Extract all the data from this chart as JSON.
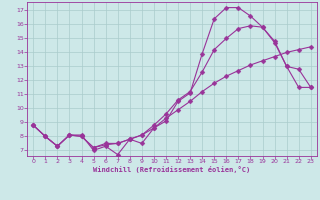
{
  "xlabel": "Windchill (Refroidissement éolien,°C)",
  "bg_color": "#cde8e8",
  "grid_color": "#aacccc",
  "line_color": "#993399",
  "markersize": 2.5,
  "linewidth": 0.8,
  "xlim": [
    -0.5,
    23.5
  ],
  "ylim": [
    6.6,
    17.6
  ],
  "xticks": [
    0,
    1,
    2,
    3,
    4,
    5,
    6,
    7,
    8,
    9,
    10,
    11,
    12,
    13,
    14,
    15,
    16,
    17,
    18,
    19,
    20,
    21,
    22,
    23
  ],
  "yticks": [
    7,
    8,
    9,
    10,
    11,
    12,
    13,
    14,
    15,
    16,
    17
  ],
  "line1_x": [
    0,
    1,
    2,
    3,
    4,
    5,
    6,
    7,
    8,
    9,
    10,
    11,
    12,
    13,
    14,
    15,
    16,
    17,
    18,
    19,
    20,
    21,
    22,
    23
  ],
  "line1_y": [
    8.8,
    8.0,
    7.3,
    8.1,
    8.1,
    7.0,
    7.3,
    6.7,
    7.8,
    7.5,
    8.6,
    9.1,
    10.5,
    11.1,
    13.9,
    16.4,
    17.2,
    17.2,
    16.6,
    15.8,
    14.8,
    13.0,
    12.8,
    11.5
  ],
  "line2_x": [
    0,
    1,
    2,
    3,
    4,
    5,
    6,
    7,
    8,
    9,
    10,
    11,
    12,
    13,
    14,
    15,
    16,
    17,
    18,
    19,
    20,
    21,
    22,
    23
  ],
  "line2_y": [
    8.8,
    8.0,
    7.3,
    8.1,
    8.0,
    7.2,
    7.4,
    7.5,
    7.8,
    8.1,
    8.6,
    9.3,
    9.9,
    10.5,
    11.2,
    11.8,
    12.3,
    12.7,
    13.1,
    13.4,
    13.7,
    14.0,
    14.2,
    14.4
  ],
  "line3_x": [
    0,
    1,
    2,
    3,
    4,
    5,
    6,
    7,
    8,
    9,
    10,
    11,
    12,
    13,
    14,
    15,
    16,
    17,
    18,
    19,
    20,
    21,
    22,
    23
  ],
  "line3_y": [
    8.8,
    8.0,
    7.3,
    8.1,
    8.0,
    7.2,
    7.5,
    7.5,
    7.8,
    8.1,
    8.8,
    9.6,
    10.6,
    11.2,
    12.6,
    14.2,
    15.0,
    15.7,
    15.9,
    15.8,
    14.7,
    13.0,
    11.5,
    11.5
  ]
}
